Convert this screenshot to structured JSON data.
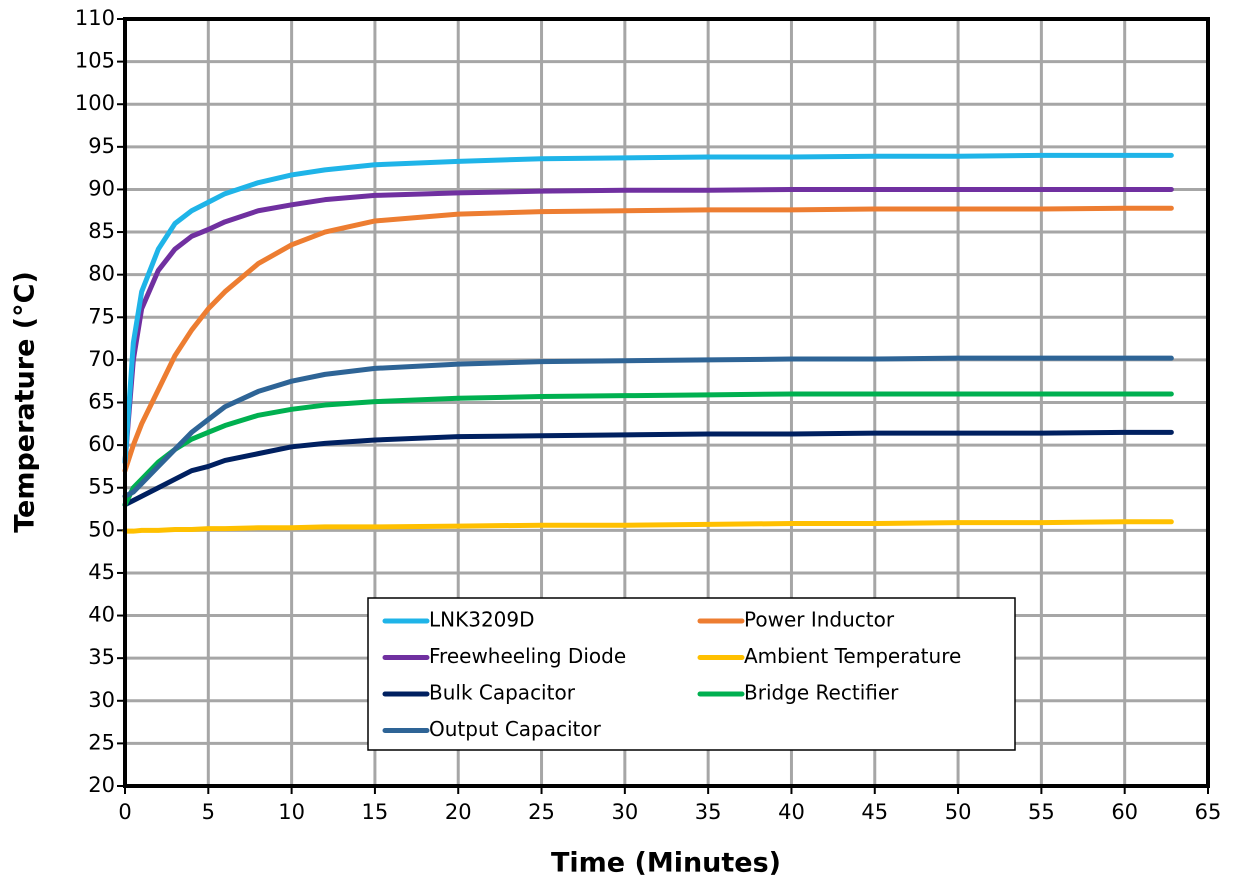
{
  "chart_data": {
    "type": "line",
    "x_label": "Time (Minutes)",
    "y_label": "Temperature (°C)",
    "x": [
      0,
      0.5,
      1,
      2,
      3,
      4,
      5,
      6,
      8,
      10,
      12,
      15,
      20,
      25,
      30,
      35,
      40,
      45,
      50,
      55,
      60,
      62.8
    ],
    "series": [
      {
        "name": "LNK3209D",
        "color": "#1fb4e8",
        "values": [
          58,
          72,
          78,
          83,
          86,
          87.5,
          88.5,
          89.5,
          90.8,
          91.7,
          92.3,
          92.9,
          93.3,
          93.6,
          93.7,
          93.8,
          93.8,
          93.9,
          93.9,
          94,
          94,
          94
        ]
      },
      {
        "name": "Power Inductor",
        "color": "#ed7d31",
        "values": [
          57,
          60,
          62.5,
          66.5,
          70.5,
          73.5,
          76,
          78,
          81.3,
          83.5,
          85,
          86.3,
          87.1,
          87.4,
          87.5,
          87.6,
          87.6,
          87.7,
          87.7,
          87.7,
          87.8,
          87.8
        ]
      },
      {
        "name": "Freewheeling Diode",
        "color": "#7030a0",
        "values": [
          58,
          70,
          76,
          80.5,
          83,
          84.5,
          85.3,
          86.2,
          87.5,
          88.2,
          88.8,
          89.3,
          89.6,
          89.8,
          89.9,
          89.9,
          90,
          90,
          90,
          90,
          90,
          90
        ]
      },
      {
        "name": "Ambient Temperature",
        "color": "#ffc000",
        "values": [
          49.9,
          49.9,
          50,
          50,
          50.1,
          50.1,
          50.2,
          50.2,
          50.3,
          50.3,
          50.4,
          50.4,
          50.5,
          50.6,
          50.6,
          50.7,
          50.8,
          50.8,
          50.9,
          50.9,
          51,
          51
        ]
      },
      {
        "name": "Bulk Capacitor",
        "color": "#002060",
        "values": [
          53,
          53.5,
          54,
          55,
          56,
          57,
          57.5,
          58.2,
          59,
          59.8,
          60.2,
          60.6,
          61,
          61.1,
          61.2,
          61.3,
          61.3,
          61.4,
          61.4,
          61.4,
          61.5,
          61.5
        ]
      },
      {
        "name": "Bridge Rectifier",
        "color": "#00b050",
        "values": [
          53,
          55,
          56,
          58,
          59.5,
          60.7,
          61.5,
          62.3,
          63.5,
          64.2,
          64.7,
          65.1,
          65.5,
          65.7,
          65.8,
          65.9,
          66,
          66,
          66,
          66,
          66,
          66
        ]
      },
      {
        "name": "Output Capacitor",
        "color": "#2e6496",
        "values": [
          54,
          54.5,
          55.5,
          57.5,
          59.5,
          61.5,
          63,
          64.5,
          66.3,
          67.5,
          68.3,
          69,
          69.5,
          69.8,
          69.9,
          70,
          70.1,
          70.1,
          70.2,
          70.2,
          70.2,
          70.2
        ]
      }
    ],
    "xlim": [
      0,
      65
    ],
    "xticks": [
      0,
      5,
      10,
      15,
      20,
      25,
      30,
      35,
      40,
      45,
      50,
      55,
      60,
      65
    ],
    "ylim": [
      20,
      110
    ],
    "yticks": [
      20,
      25,
      30,
      35,
      40,
      45,
      50,
      55,
      60,
      65,
      70,
      75,
      80,
      85,
      90,
      95,
      100,
      105,
      110
    ],
    "grid": true
  }
}
